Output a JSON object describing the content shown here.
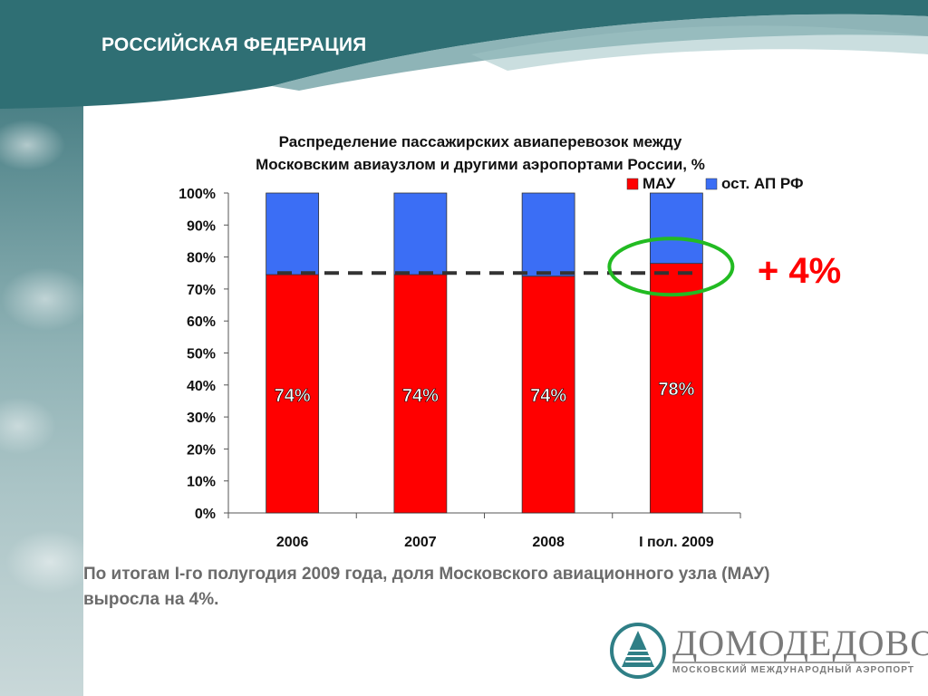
{
  "slide": {
    "title": "РОССИЙСКАЯ ФЕДЕРАЦИЯ",
    "caption_line1": "По итогам I-го полугодия 2009 года, доля Московского авиационного узла (МАУ)",
    "caption_line2": "выросла на 4%.",
    "logo_name": "ДОМОДЕДОВО",
    "logo_sub": "МОСКОВСКИЙ МЕЖДУНАРОДНЫЙ АЭРОПОРТ",
    "annotation": "+ 4%"
  },
  "colors": {
    "mau": "#ff0000",
    "other": "#3b6ef5",
    "highlight": "#22bb22",
    "teal": "#2f6f74"
  },
  "chart_data": {
    "type": "bar",
    "stacked": true,
    "title": "Распределение пассажирских авиаперевозок между Московским авиаузлом и другими аэропортами России, %",
    "title_line1": "Распределение пассажирских авиаперевозок между",
    "title_line2": "Московским авиаузлом и другими аэропортами России, %",
    "categories": [
      "2006",
      "2007",
      "2008",
      "I пол. 2009"
    ],
    "series": [
      {
        "name": "МАУ",
        "values": [
          74.5,
          74.5,
          74,
          78
        ],
        "labels": [
          "74%",
          "74%",
          "74%",
          "78%"
        ]
      },
      {
        "name": "ост. АП РФ",
        "values": [
          25.5,
          25.5,
          26,
          22
        ]
      }
    ],
    "ylim": [
      0,
      100
    ],
    "yticks": [
      "0%",
      "10%",
      "20%",
      "30%",
      "40%",
      "50%",
      "60%",
      "70%",
      "80%",
      "90%",
      "100%"
    ],
    "reference_line": 75,
    "legend": "top-right",
    "grid": false
  }
}
